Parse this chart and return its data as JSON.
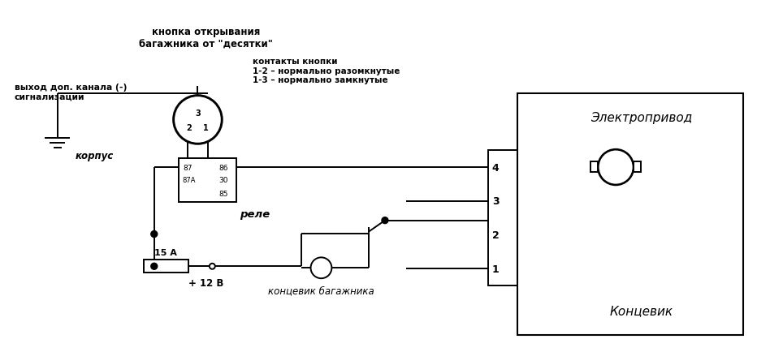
{
  "bg_color": "#ffffff",
  "line_color": "#000000",
  "fig_width": 9.32,
  "fig_height": 4.35,
  "labels": {
    "button_title": "кнопка открывания\nбагажника от \"десятки\"",
    "signal_out": "выход доп. канала (-)\nсигнализации",
    "corpus": "корпус",
    "contacts": "контакты кнопки\n1-2 – нормально разомкнутые\n1-3 – нормально замкнутые",
    "relay": "реле",
    "fuse": "15 А",
    "plus12": "+ 12 В",
    "koncevic_bag": "концевик багажника",
    "elektroprivod": "Электропривод",
    "koncevic": "Концевик"
  }
}
